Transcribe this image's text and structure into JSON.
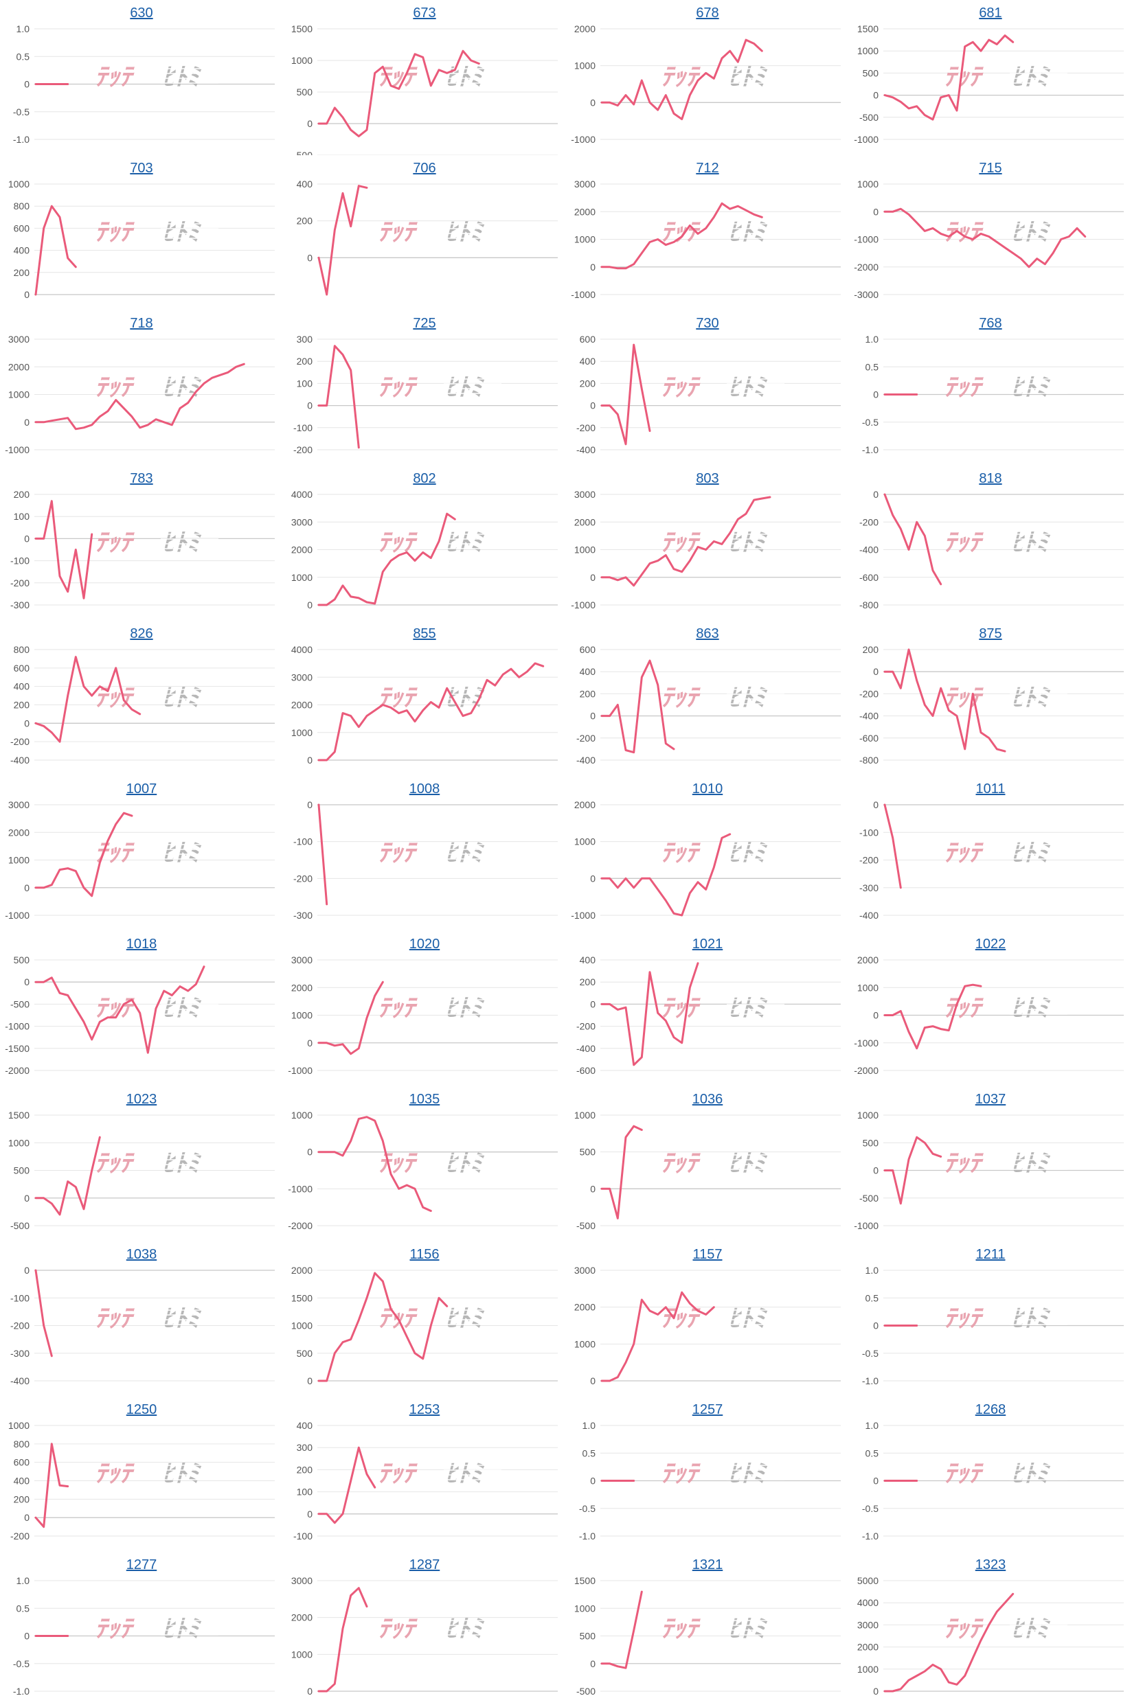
{
  "colors": {
    "line": "#ea5a7a",
    "grid": "#e6e6e6",
    "zero": "#c8c8c8",
    "title": "#1a5ea8",
    "tick": "#555555",
    "watermark_red": "#e8a0ac",
    "watermark_gray": "#b4b4b4"
  },
  "watermark": [
    "ﾃｯﾃ",
    "ﾋﾄﾐ"
  ],
  "chart_data": [
    {
      "type": "line",
      "title": "630",
      "ylim": [
        -1,
        1
      ],
      "yticks": [
        "1.0",
        "0.5",
        "0",
        "-0.5",
        "-1.0"
      ],
      "values": [
        0,
        0,
        0,
        0,
        0
      ]
    },
    {
      "type": "line",
      "title": "673",
      "ylim": [
        -250,
        1500
      ],
      "yticks": [
        "1500",
        "1000",
        "500",
        "0",
        "-500"
      ],
      "values": [
        0,
        0,
        250,
        100,
        -100,
        -200,
        -100,
        800,
        900,
        600,
        550,
        800,
        1100,
        1050,
        600,
        850,
        800,
        850,
        1150,
        1000,
        950
      ]
    },
    {
      "type": "line",
      "title": "678",
      "ylim": [
        -1000,
        2000
      ],
      "yticks": [
        "2000",
        "1000",
        "0",
        "-1000"
      ],
      "values": [
        0,
        0,
        -80,
        200,
        -50,
        600,
        0,
        -200,
        200,
        -300,
        -450,
        200,
        600,
        800,
        650,
        1200,
        1400,
        1100,
        1700,
        1600,
        1400
      ]
    },
    {
      "type": "line",
      "title": "681",
      "ylim": [
        -1000,
        1500
      ],
      "yticks": [
        "1500",
        "1000",
        "500",
        "0",
        "-500",
        "-1000"
      ],
      "values": [
        0,
        -50,
        -150,
        -300,
        -250,
        -450,
        -550,
        -50,
        0,
        -350,
        1100,
        1200,
        1000,
        1250,
        1150,
        1350,
        1200
      ]
    },
    {
      "type": "line",
      "title": "703",
      "ylim": [
        0,
        1000
      ],
      "yticks": [
        "1000",
        "800",
        "600",
        "400",
        "200",
        "0"
      ],
      "values": [
        0,
        600,
        800,
        700,
        330,
        250
      ]
    },
    {
      "type": "line",
      "title": "706",
      "ylim": [
        -200,
        400
      ],
      "yticks": [
        "400",
        "200",
        "0"
      ],
      "values": [
        0,
        -200,
        150,
        350,
        170,
        390,
        380
      ]
    },
    {
      "type": "line",
      "title": "712",
      "ylim": [
        -1000,
        3000
      ],
      "yticks": [
        "3000",
        "2000",
        "1000",
        "0",
        "-1000"
      ],
      "values": [
        0,
        0,
        -50,
        -50,
        100,
        500,
        900,
        1000,
        800,
        900,
        1100,
        1500,
        1200,
        1400,
        1800,
        2300,
        2100,
        2200,
        2050,
        1900,
        1800
      ]
    },
    {
      "type": "line",
      "title": "715",
      "ylim": [
        -3000,
        1000
      ],
      "yticks": [
        "1000",
        "0",
        "-1000",
        "-2000",
        "-3000"
      ],
      "values": [
        0,
        0,
        100,
        -100,
        -400,
        -700,
        -600,
        -800,
        -900,
        -700,
        -900,
        -1000,
        -800,
        -900,
        -1100,
        -1300,
        -1500,
        -1700,
        -2000,
        -1700,
        -1900,
        -1500,
        -1000,
        -900,
        -600,
        -900
      ]
    },
    {
      "type": "line",
      "title": "718",
      "ylim": [
        -1000,
        3000
      ],
      "yticks": [
        "3000",
        "2000",
        "1000",
        "0",
        "-1000"
      ],
      "values": [
        0,
        0,
        50,
        100,
        150,
        -250,
        -200,
        -100,
        200,
        400,
        800,
        500,
        200,
        -200,
        -100,
        100,
        0,
        -100,
        500,
        700,
        1100,
        1400,
        1600,
        1700,
        1800,
        2000,
        2100
      ]
    },
    {
      "type": "line",
      "title": "725",
      "ylim": [
        -200,
        300
      ],
      "yticks": [
        "300",
        "200",
        "100",
        "0",
        "-100",
        "-200"
      ],
      "values": [
        0,
        0,
        270,
        230,
        160,
        -190
      ]
    },
    {
      "type": "line",
      "title": "730",
      "ylim": [
        -400,
        600
      ],
      "yticks": [
        "600",
        "400",
        "200",
        "0",
        "-200",
        "-400"
      ],
      "values": [
        0,
        0,
        -80,
        -350,
        550,
        150,
        -230
      ]
    },
    {
      "type": "line",
      "title": "768",
      "ylim": [
        -1,
        1
      ],
      "yticks": [
        "1.0",
        "0.5",
        "0",
        "-0.5",
        "-1.0"
      ],
      "values": [
        0,
        0,
        0,
        0,
        0
      ]
    },
    {
      "type": "line",
      "title": "783",
      "ylim": [
        -300,
        200
      ],
      "yticks": [
        "200",
        "100",
        "0",
        "-100",
        "-200",
        "-300"
      ],
      "values": [
        0,
        0,
        170,
        -170,
        -240,
        -50,
        -270,
        20
      ]
    },
    {
      "type": "line",
      "title": "802",
      "ylim": [
        0,
        4000
      ],
      "yticks": [
        "4000",
        "3000",
        "2000",
        "1000",
        "0"
      ],
      "values": [
        0,
        0,
        200,
        700,
        300,
        250,
        100,
        50,
        1200,
        1600,
        1800,
        1900,
        1600,
        1900,
        1700,
        2300,
        3300,
        3100
      ]
    },
    {
      "type": "line",
      "title": "803",
      "ylim": [
        -1000,
        3000
      ],
      "yticks": [
        "3000",
        "2000",
        "1000",
        "0",
        "-1000"
      ],
      "values": [
        0,
        0,
        -100,
        0,
        -300,
        100,
        500,
        600,
        800,
        300,
        200,
        600,
        1100,
        1000,
        1300,
        1200,
        1600,
        2100,
        2300,
        2800,
        2850,
        2900
      ]
    },
    {
      "type": "line",
      "title": "818",
      "ylim": [
        -800,
        0
      ],
      "yticks": [
        "0",
        "-200",
        "-400",
        "-600",
        "-800"
      ],
      "values": [
        0,
        -150,
        -250,
        -400,
        -200,
        -300,
        -550,
        -650
      ]
    },
    {
      "type": "line",
      "title": "826",
      "ylim": [
        -400,
        800
      ],
      "yticks": [
        "800",
        "600",
        "400",
        "200",
        "0",
        "-200",
        "-400"
      ],
      "values": [
        0,
        -30,
        -100,
        -200,
        300,
        720,
        400,
        300,
        400,
        350,
        600,
        250,
        150,
        100
      ]
    },
    {
      "type": "line",
      "title": "855",
      "ylim": [
        0,
        4000
      ],
      "yticks": [
        "4000",
        "3000",
        "2000",
        "1000",
        "0"
      ],
      "values": [
        0,
        0,
        300,
        1700,
        1600,
        1200,
        1600,
        1800,
        2000,
        1900,
        1700,
        1800,
        1400,
        1800,
        2100,
        1900,
        2600,
        2100,
        1600,
        1700,
        2200,
        2900,
        2700,
        3100,
        3300,
        3000,
        3200,
        3500,
        3400
      ]
    },
    {
      "type": "line",
      "title": "863",
      "ylim": [
        -400,
        600
      ],
      "yticks": [
        "600",
        "400",
        "200",
        "0",
        "-200",
        "-400"
      ],
      "values": [
        0,
        0,
        100,
        -310,
        -330,
        350,
        500,
        280,
        -250,
        -300
      ]
    },
    {
      "type": "line",
      "title": "875",
      "ylim": [
        -800,
        200
      ],
      "yticks": [
        "200",
        "0",
        "-200",
        "-400",
        "-600",
        "-800"
      ],
      "values": [
        0,
        0,
        -150,
        200,
        -80,
        -300,
        -400,
        -150,
        -350,
        -400,
        -700,
        -200,
        -550,
        -600,
        -700,
        -720
      ]
    },
    {
      "type": "line",
      "title": "1007",
      "ylim": [
        -1000,
        3000
      ],
      "yticks": [
        "3000",
        "2000",
        "1000",
        "0",
        "-1000"
      ],
      "values": [
        0,
        0,
        100,
        650,
        700,
        600,
        0,
        -300,
        900,
        1700,
        2300,
        2700,
        2600
      ]
    },
    {
      "type": "line",
      "title": "1008",
      "ylim": [
        -300,
        0
      ],
      "yticks": [
        "0",
        "-100",
        "-200",
        "-300"
      ],
      "values": [
        0,
        -270
      ]
    },
    {
      "type": "line",
      "title": "1010",
      "ylim": [
        -1000,
        2000
      ],
      "yticks": [
        "2000",
        "1000",
        "0",
        "-1000"
      ],
      "values": [
        0,
        0,
        -250,
        0,
        -250,
        0,
        0,
        -300,
        -600,
        -950,
        -1000,
        -400,
        -100,
        -300,
        300,
        1100,
        1200
      ]
    },
    {
      "type": "line",
      "title": "1011",
      "ylim": [
        -400,
        0
      ],
      "yticks": [
        "0",
        "-100",
        "-200",
        "-300",
        "-400"
      ],
      "values": [
        0,
        -120,
        -300
      ]
    },
    {
      "type": "line",
      "title": "1018",
      "ylim": [
        -2000,
        500
      ],
      "yticks": [
        "500",
        "0",
        "-500",
        "-1000",
        "-1500",
        "-2000"
      ],
      "values": [
        0,
        0,
        100,
        -250,
        -300,
        -600,
        -900,
        -1300,
        -900,
        -800,
        -800,
        -500,
        -400,
        -700,
        -1600,
        -600,
        -200,
        -300,
        -100,
        -200,
        -50,
        350
      ]
    },
    {
      "type": "line",
      "title": "1020",
      "ylim": [
        -1000,
        3000
      ],
      "yticks": [
        "3000",
        "2000",
        "1000",
        "0",
        "-1000"
      ],
      "values": [
        0,
        0,
        -100,
        -50,
        -400,
        -200,
        900,
        1700,
        2200
      ]
    },
    {
      "type": "line",
      "title": "1021",
      "ylim": [
        -600,
        400
      ],
      "yticks": [
        "400",
        "200",
        "0",
        "-200",
        "-400",
        "-600"
      ],
      "values": [
        0,
        0,
        -50,
        -30,
        -550,
        -480,
        290,
        -80,
        -150,
        -300,
        -350,
        150,
        370
      ]
    },
    {
      "type": "line",
      "title": "1022",
      "ylim": [
        -2000,
        2000
      ],
      "yticks": [
        "2000",
        "1000",
        "0",
        "-1000",
        "-2000"
      ],
      "values": [
        0,
        0,
        150,
        -600,
        -1200,
        -450,
        -400,
        -500,
        -550,
        400,
        1050,
        1100,
        1050
      ]
    },
    {
      "type": "line",
      "title": "1023",
      "ylim": [
        -500,
        1500
      ],
      "yticks": [
        "1500",
        "1000",
        "500",
        "0",
        "-500"
      ],
      "values": [
        0,
        0,
        -100,
        -300,
        300,
        200,
        -200,
        500,
        1100
      ]
    },
    {
      "type": "line",
      "title": "1035",
      "ylim": [
        -2000,
        1000
      ],
      "yticks": [
        "1000",
        "0",
        "-1000",
        "-2000"
      ],
      "values": [
        0,
        0,
        0,
        -100,
        300,
        900,
        950,
        850,
        300,
        -600,
        -1000,
        -900,
        -1000,
        -1500,
        -1600
      ]
    },
    {
      "type": "line",
      "title": "1036",
      "ylim": [
        -500,
        1000
      ],
      "yticks": [
        "1000",
        "500",
        "0",
        "-500"
      ],
      "values": [
        0,
        0,
        -400,
        700,
        850,
        800
      ]
    },
    {
      "type": "line",
      "title": "1037",
      "ylim": [
        -1000,
        1000
      ],
      "yticks": [
        "1000",
        "500",
        "0",
        "-500",
        "-1000"
      ],
      "values": [
        0,
        0,
        -600,
        200,
        600,
        500,
        300,
        250
      ]
    },
    {
      "type": "line",
      "title": "1038",
      "ylim": [
        -400,
        0
      ],
      "yticks": [
        "0",
        "-100",
        "-200",
        "-300",
        "-400"
      ],
      "values": [
        0,
        -200,
        -310
      ]
    },
    {
      "type": "line",
      "title": "1156",
      "ylim": [
        0,
        2000
      ],
      "yticks": [
        "2000",
        "1500",
        "1000",
        "500",
        "0"
      ],
      "values": [
        0,
        0,
        500,
        700,
        750,
        1100,
        1500,
        1950,
        1800,
        1300,
        1100,
        800,
        500,
        400,
        1000,
        1500,
        1350
      ]
    },
    {
      "type": "line",
      "title": "1157",
      "ylim": [
        0,
        3000
      ],
      "yticks": [
        "3000",
        "2000",
        "1000",
        "0"
      ],
      "values": [
        0,
        0,
        100,
        500,
        1000,
        2200,
        1900,
        1800,
        2000,
        1700,
        2400,
        2100,
        1900,
        1800,
        2000
      ]
    },
    {
      "type": "line",
      "title": "1211",
      "ylim": [
        -1,
        1
      ],
      "yticks": [
        "1.0",
        "0.5",
        "0",
        "-0.5",
        "-1.0"
      ],
      "values": [
        0,
        0,
        0,
        0,
        0
      ]
    },
    {
      "type": "line",
      "title": "1250",
      "ylim": [
        -200,
        1000
      ],
      "yticks": [
        "1000",
        "800",
        "600",
        "400",
        "200",
        "0",
        "-200"
      ],
      "values": [
        0,
        -100,
        800,
        350,
        340
      ]
    },
    {
      "type": "line",
      "title": "1253",
      "ylim": [
        -100,
        400
      ],
      "yticks": [
        "400",
        "300",
        "200",
        "100",
        "0",
        "-100"
      ],
      "values": [
        0,
        0,
        -40,
        0,
        150,
        300,
        180,
        120
      ]
    },
    {
      "type": "line",
      "title": "1257",
      "ylim": [
        -1,
        1
      ],
      "yticks": [
        "1.0",
        "0.5",
        "0",
        "-0.5",
        "-1.0"
      ],
      "values": [
        0,
        0,
        0,
        0,
        0
      ]
    },
    {
      "type": "line",
      "title": "1268",
      "ylim": [
        -1,
        1
      ],
      "yticks": [
        "1.0",
        "0.5",
        "0",
        "-0.5",
        "-1.0"
      ],
      "values": [
        0,
        0,
        0,
        0,
        0
      ]
    },
    {
      "type": "line",
      "title": "1277",
      "ylim": [
        -1,
        1
      ],
      "yticks": [
        "1.0",
        "0.5",
        "0",
        "-0.5",
        "-1.0"
      ],
      "values": [
        0,
        0,
        0,
        0,
        0
      ]
    },
    {
      "type": "line",
      "title": "1287",
      "ylim": [
        0,
        3000
      ],
      "yticks": [
        "3000",
        "2000",
        "1000",
        "0"
      ],
      "values": [
        0,
        0,
        200,
        1700,
        2600,
        2800,
        2300
      ]
    },
    {
      "type": "line",
      "title": "1321",
      "ylim": [
        -500,
        1500
      ],
      "yticks": [
        "1500",
        "1000",
        "500",
        "0",
        "-500"
      ],
      "values": [
        0,
        0,
        -50,
        -80,
        600,
        1300
      ]
    },
    {
      "type": "line",
      "title": "1323",
      "ylim": [
        0,
        5000
      ],
      "yticks": [
        "5000",
        "4000",
        "3000",
        "2000",
        "1000",
        "0"
      ],
      "values": [
        0,
        0,
        100,
        500,
        700,
        900,
        1200,
        1000,
        400,
        300,
        700,
        1500,
        2300,
        3000,
        3600,
        4000,
        4400
      ]
    }
  ]
}
